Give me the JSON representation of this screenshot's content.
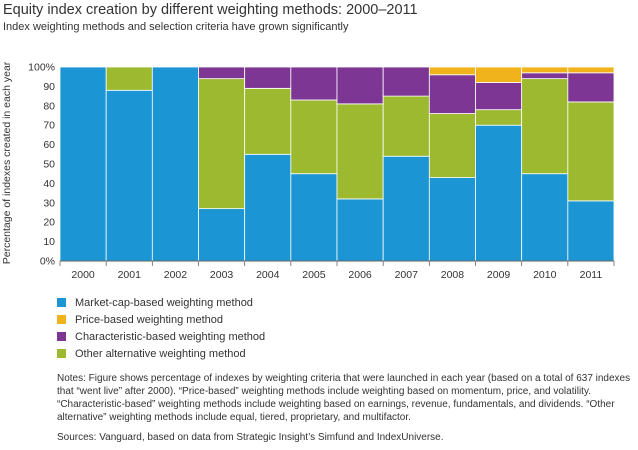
{
  "header": {
    "title": "Equity index creation by different weighting methods: 2000–2011",
    "subtitle": "Index weighting methods and selection criteria have grown significantly"
  },
  "colors": {
    "market_cap": "#1b95d3",
    "price": "#f0b31b",
    "characteristic": "#7d3694",
    "other": "#9cb930",
    "axis": "#666666",
    "grid": "#dddddd"
  },
  "chart_data": {
    "type": "bar",
    "stacked": true,
    "categories": [
      "2000",
      "2001",
      "2002",
      "2003",
      "2004",
      "2005",
      "2006",
      "2007",
      "2008",
      "2009",
      "2010",
      "2011"
    ],
    "series": [
      {
        "name": "Market-cap-based weighting method",
        "color": "#1b95d3",
        "values": [
          100,
          88,
          100,
          27,
          55,
          45,
          32,
          54,
          43,
          70,
          45,
          31
        ]
      },
      {
        "name": "Other alternative weighting method",
        "color": "#9cb930",
        "values": [
          0,
          12,
          0,
          67,
          34,
          38,
          49,
          31,
          33,
          8,
          49,
          51
        ]
      },
      {
        "name": "Characteristic-based weighting method",
        "color": "#7d3694",
        "values": [
          0,
          0,
          0,
          6,
          11,
          17,
          19,
          15,
          20,
          14,
          3,
          15
        ]
      },
      {
        "name": "Price-based weighting method",
        "color": "#f0b31b",
        "values": [
          0,
          0,
          0,
          0,
          0,
          0,
          0,
          0,
          4,
          8,
          3,
          3
        ]
      }
    ],
    "ylabel": "Percentage of indexes created in each year",
    "ylim": [
      0,
      100
    ],
    "yticks": [
      "0%",
      "10",
      "20",
      "30",
      "40",
      "50",
      "60",
      "70",
      "80",
      "90",
      "100%"
    ],
    "legend_position": "bottom-left"
  },
  "legend": [
    {
      "label": "Market-cap-based weighting method",
      "color": "#1b95d3"
    },
    {
      "label": "Price-based weighting method",
      "color": "#f0b31b"
    },
    {
      "label": "Characteristic-based weighting method",
      "color": "#7d3694"
    },
    {
      "label": "Other alternative weighting method",
      "color": "#9cb930"
    }
  ],
  "notes": "Notes: Figure shows percentage of indexes by weighting criteria that were launched in each year (based on a total of 637 indexes that “went live” after 2000). “Price-based” weighting methods include weighting based on momentum, price, and volatility. “Characteristic-based” weighting methods include weighting based on earnings, revenue, fundamentals, and dividends. “Other alternative” weighting methods include equal, tiered, proprietary, and multifactor.",
  "sources": "Sources: Vanguard, based on data from Strategic Insight’s Simfund and IndexUniverse."
}
